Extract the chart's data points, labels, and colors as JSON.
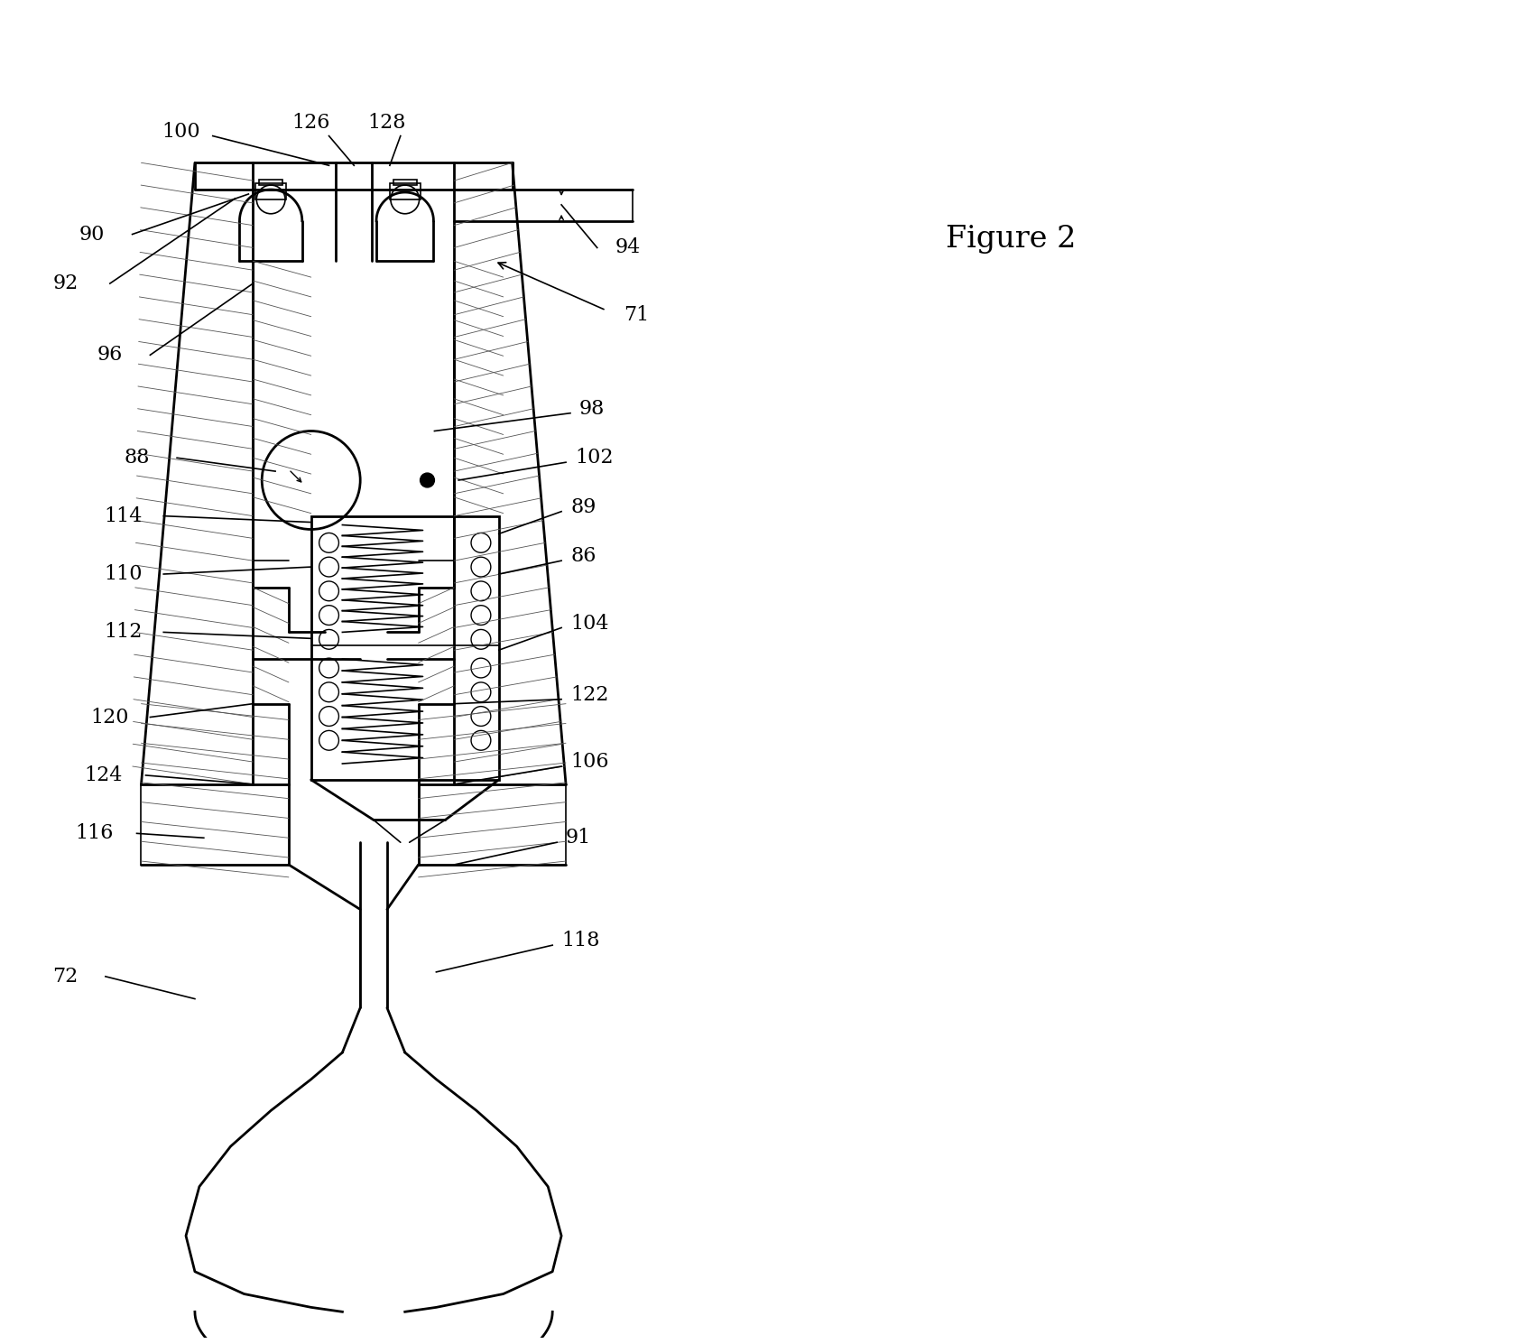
{
  "figure_label": "Figure 2",
  "background_color": "#ffffff",
  "font_size": 16,
  "title_font_size": 24,
  "lw_main": 2.0,
  "lw_thin": 1.2,
  "lw_hatch": 0.8
}
